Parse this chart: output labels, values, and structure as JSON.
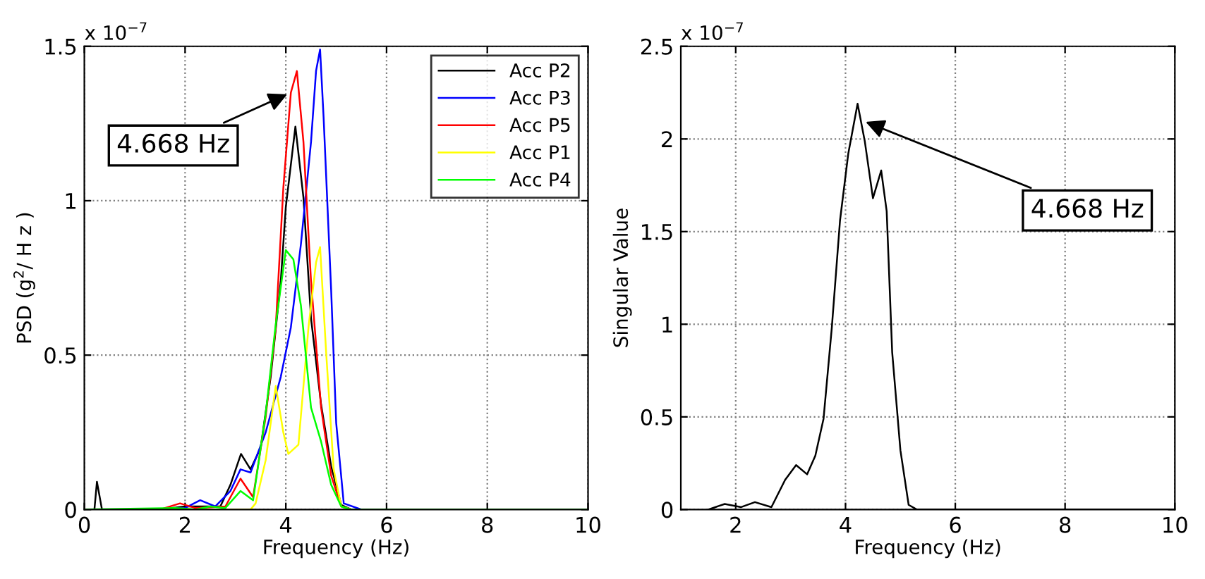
{
  "chart_data": [
    {
      "type": "line",
      "xlabel": "Frequency (Hz)",
      "ylabel": "PSD (g$^{2}$/ H z )",
      "xlim": [
        0,
        10
      ],
      "ylim": [
        0,
        1.5
      ],
      "xticks": [
        0,
        2,
        4,
        6,
        8,
        10
      ],
      "yticks": [
        0,
        0.5,
        1,
        1.5
      ],
      "grid": true,
      "legend": "top right",
      "marker": "none",
      "line_style": "solid",
      "annotations": [
        "x 10$^{−7}$",
        {
          "text": "4.668 Hz",
          "x": 4.1,
          "y": 1.35
        }
      ],
      "series": [
        {
          "name": "Acc P2",
          "color": "#000000",
          "x": [
            0,
            0.2,
            0.25,
            0.35,
            1.5,
            2.0,
            2.3,
            2.7,
            2.9,
            3.11,
            3.3,
            3.5,
            3.7,
            3.9,
            4.0,
            4.19,
            4.35,
            4.5,
            4.7,
            4.9,
            5.1,
            5.3,
            10
          ],
          "values": [
            0,
            0,
            0.09,
            0,
            0,
            0.01,
            0.01,
            0.01,
            0.08,
            0.18,
            0.13,
            0.2,
            0.43,
            0.74,
            0.98,
            1.24,
            1.01,
            0.62,
            0.34,
            0.14,
            0.015,
            0,
            0
          ]
        },
        {
          "name": "Acc P3",
          "color": "#0000ff",
          "x": [
            0,
            1.5,
            2.0,
            2.3,
            2.6,
            2.9,
            3.1,
            3.3,
            3.6,
            3.9,
            4.1,
            4.3,
            4.5,
            4.6,
            4.68,
            4.75,
            4.9,
            5.0,
            5.15,
            5.5,
            10
          ],
          "values": [
            0,
            0,
            0.005,
            0.03,
            0.01,
            0.06,
            0.13,
            0.12,
            0.25,
            0.43,
            0.59,
            0.86,
            1.19,
            1.42,
            1.49,
            1.27,
            0.71,
            0.28,
            0.02,
            0,
            0
          ]
        },
        {
          "name": "Acc P5",
          "color": "#ff0000",
          "x": [
            0,
            1.5,
            1.9,
            2.2,
            2.8,
            3.1,
            3.35,
            3.6,
            3.8,
            3.95,
            4.1,
            4.22,
            4.35,
            4.5,
            4.7,
            4.9,
            5.1,
            5.3,
            10
          ],
          "values": [
            0,
            0,
            0.02,
            0.005,
            0.01,
            0.1,
            0.04,
            0.3,
            0.59,
            1.04,
            1.35,
            1.42,
            1.19,
            0.74,
            0.33,
            0.11,
            0.01,
            0,
            0
          ]
        },
        {
          "name": "Acc P1",
          "color": "#ffff00",
          "x": [
            0,
            3.3,
            3.4,
            3.6,
            3.8,
            3.95,
            4.05,
            4.25,
            4.45,
            4.6,
            4.68,
            4.8,
            4.95,
            5.1,
            5.3,
            10
          ],
          "values": [
            0,
            0,
            0.02,
            0.16,
            0.4,
            0.25,
            0.18,
            0.21,
            0.59,
            0.8,
            0.85,
            0.51,
            0.13,
            0.01,
            0,
            0
          ]
        },
        {
          "name": "Acc P4",
          "color": "#00ff00",
          "x": [
            0,
            1.8,
            2.2,
            2.5,
            2.8,
            3.1,
            3.35,
            3.6,
            3.8,
            4.0,
            4.15,
            4.3,
            4.5,
            4.7,
            4.9,
            5.1,
            5.3,
            10
          ],
          "values": [
            0,
            0.005,
            0,
            0.01,
            0.005,
            0.06,
            0.03,
            0.31,
            0.6,
            0.84,
            0.81,
            0.66,
            0.33,
            0.22,
            0.08,
            0.01,
            0,
            0
          ]
        }
      ]
    },
    {
      "type": "line",
      "xlabel": "Frequency (Hz)",
      "ylabel": "Singular Value",
      "xlim": [
        1,
        10
      ],
      "ylim": [
        0,
        2.5
      ],
      "xticks": [
        2,
        4,
        6,
        8,
        10
      ],
      "yticks": [
        0,
        0.5,
        1,
        1.5,
        2,
        2.5
      ],
      "grid": true,
      "marker": "none",
      "line_style": "solid",
      "annotations": [
        "x 10$^{−7}$",
        {
          "text": "4.668 Hz",
          "x": 4.3,
          "y": 2.1
        }
      ],
      "series": [
        {
          "color": "#000000",
          "x": [
            1.5,
            1.8,
            2.1,
            2.35,
            2.65,
            2.9,
            3.1,
            3.3,
            3.45,
            3.6,
            3.75,
            3.9,
            4.05,
            4.22,
            4.35,
            4.5,
            4.65,
            4.75,
            4.85,
            5.0,
            5.15,
            5.3,
            10
          ],
          "values": [
            0,
            0.03,
            0.013,
            0.04,
            0.013,
            0.16,
            0.24,
            0.19,
            0.29,
            0.49,
            0.98,
            1.56,
            1.92,
            2.19,
            1.99,
            1.68,
            1.83,
            1.61,
            0.85,
            0.32,
            0.025,
            0,
            0
          ]
        }
      ]
    }
  ]
}
